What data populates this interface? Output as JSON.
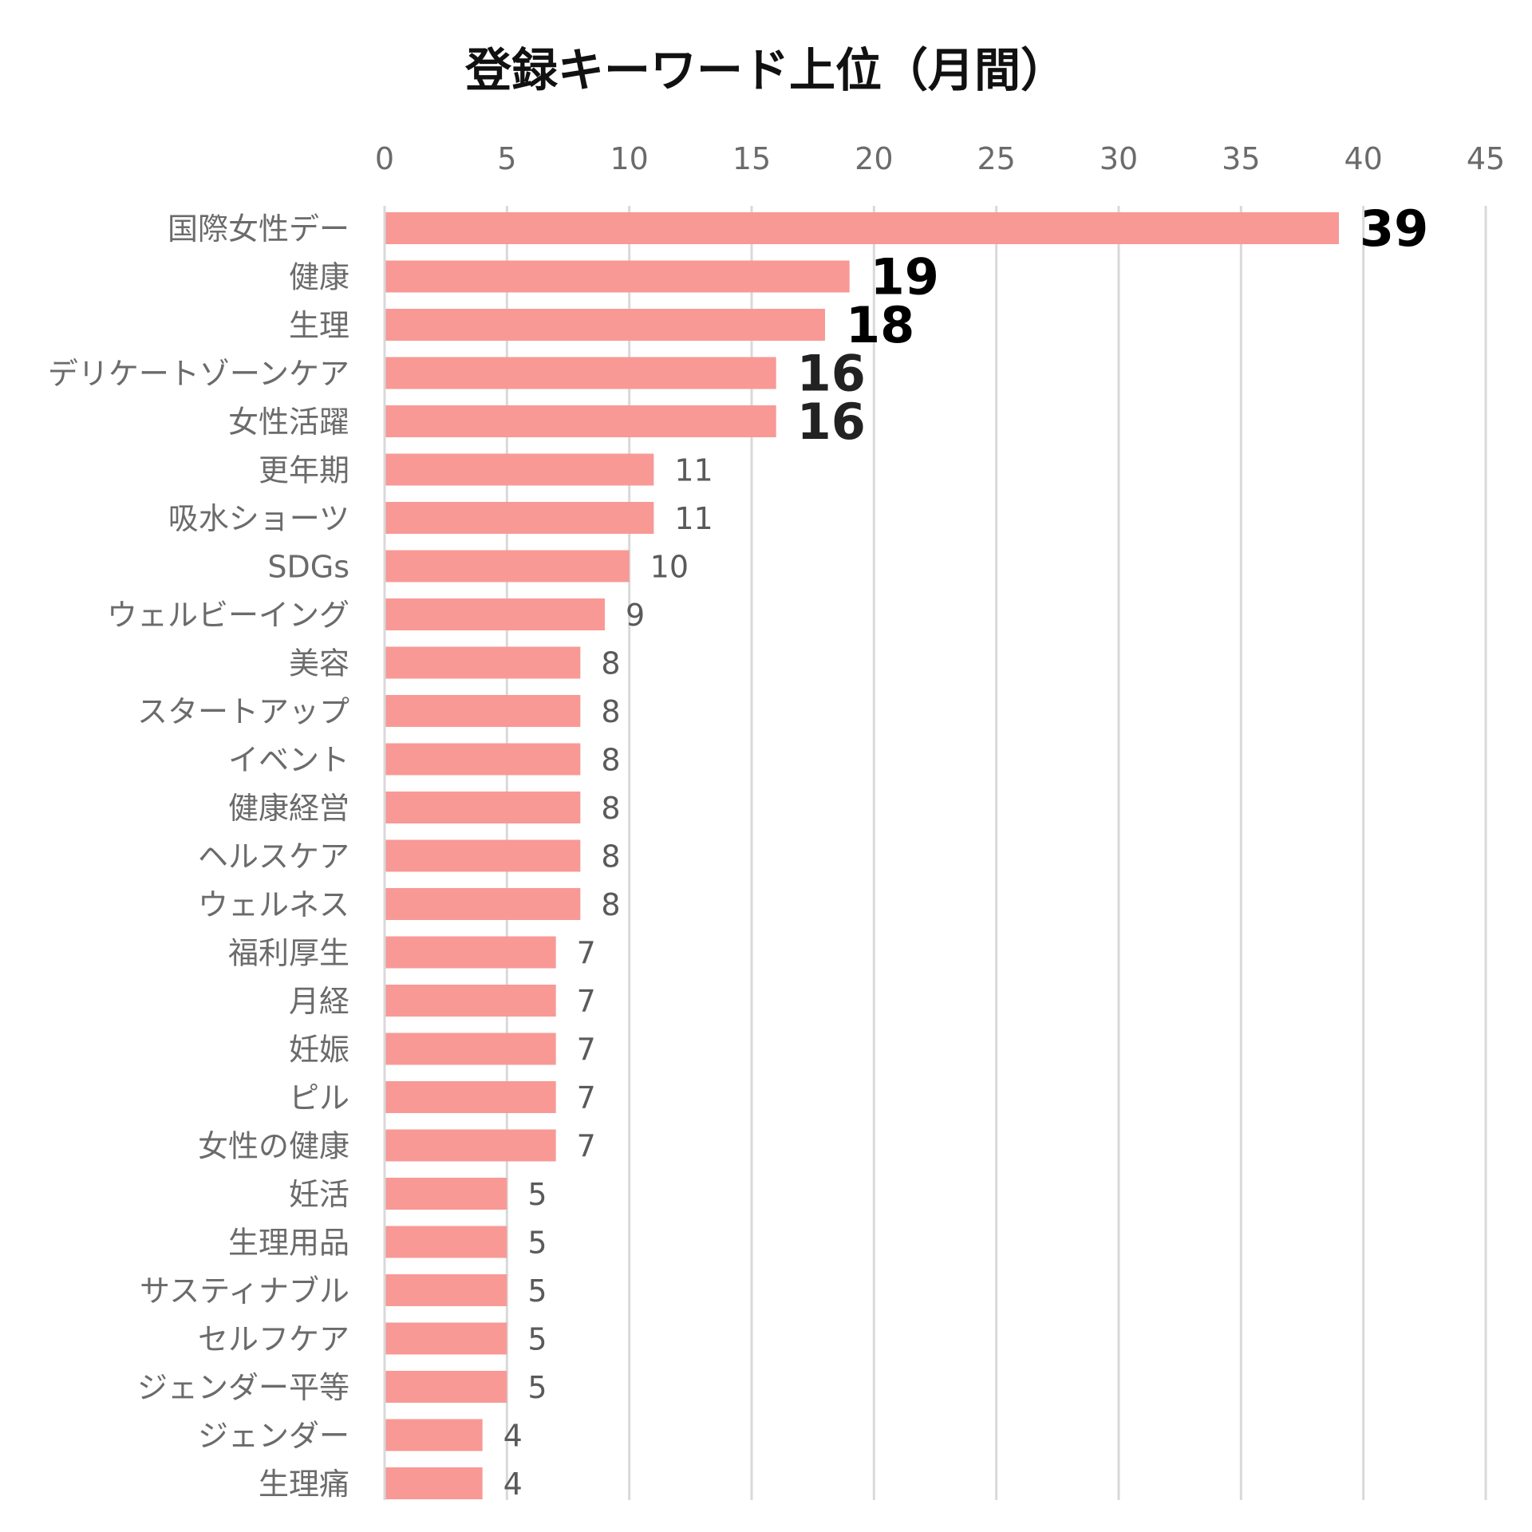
{
  "chart_data": {
    "type": "bar",
    "orientation": "horizontal",
    "title": "登録キーワード上位（月間）",
    "xlim": [
      0,
      45
    ],
    "x_ticks": [
      "0",
      "5",
      "10",
      "15",
      "20",
      "25",
      "30",
      "35",
      "40",
      "45"
    ],
    "grid": true,
    "bar_color": "#f89995",
    "categories": [
      "国際女性デー",
      "健康",
      "生理",
      "デリケートゾーンケア",
      "女性活躍",
      "更年期",
      "吸水ショーツ",
      "SDGs",
      "ウェルビーイング",
      "美容",
      "スタートアップ",
      "イベント",
      "健康経営",
      "ヘルスケア",
      "ウェルネス",
      "福利厚生",
      "月経",
      "妊娠",
      "ピル",
      "女性の健康",
      "妊活",
      "生理用品",
      "サスティナブル",
      "セルフケア",
      "ジェンダー平等",
      "ジェンダー",
      "生理痛"
    ],
    "values": [
      39,
      19,
      18,
      16,
      16,
      11,
      11,
      10,
      9,
      8,
      8,
      8,
      8,
      8,
      8,
      7,
      7,
      7,
      7,
      7,
      5,
      5,
      5,
      5,
      5,
      4,
      4
    ],
    "emphasized_labels": [
      39,
      19,
      18,
      16,
      16
    ]
  }
}
